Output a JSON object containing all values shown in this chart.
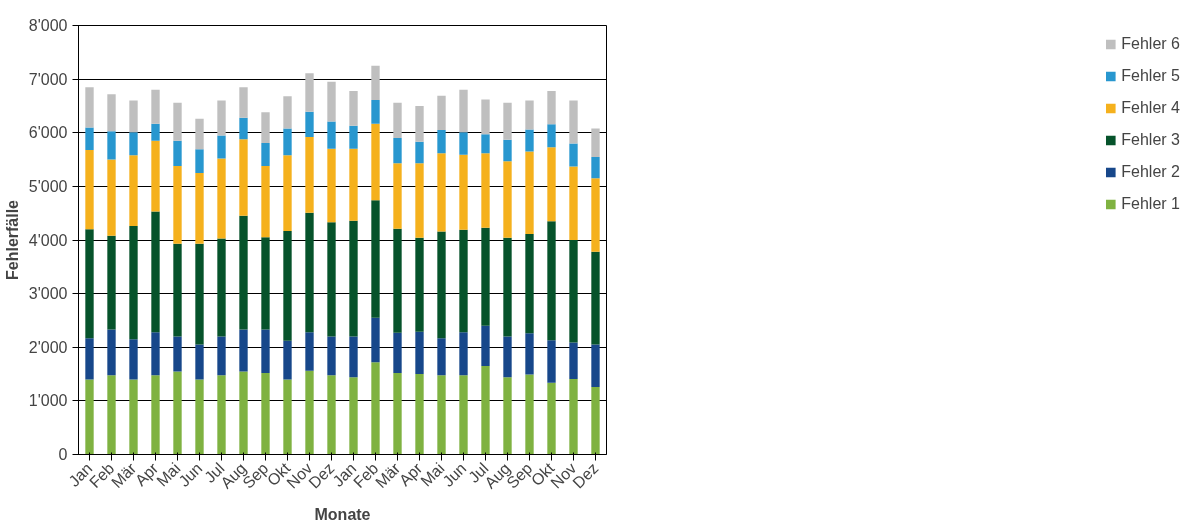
{
  "chart_data": {
    "type": "bar",
    "stacked": true,
    "xlabel": "Monate",
    "ylabel": "Fehlerfälle",
    "categories": [
      "Jan",
      "Feb",
      "Mär",
      "Apr",
      "Mai",
      "Jun",
      "Jul",
      "Aug",
      "Sep",
      "Okt",
      "Nov",
      "Dez",
      "Jan",
      "Feb",
      "Mär",
      "Apr",
      "Mai",
      "Jun",
      "Jul",
      "Aug",
      "Sep",
      "Okt",
      "Nov",
      "Dez"
    ],
    "series": [
      {
        "name": "Fehler 1",
        "color": "#7fb241",
        "values": [
          1400,
          1480,
          1400,
          1480,
          1550,
          1400,
          1480,
          1550,
          1520,
          1400,
          1560,
          1480,
          1440,
          1720,
          1520,
          1500,
          1480,
          1480,
          1650,
          1440,
          1490,
          1340,
          1410,
          1260
        ]
      },
      {
        "name": "Fehler 2",
        "color": "#17478a",
        "values": [
          770,
          850,
          750,
          800,
          650,
          650,
          720,
          780,
          810,
          720,
          720,
          720,
          760,
          830,
          750,
          790,
          690,
          800,
          750,
          760,
          770,
          790,
          680,
          790
        ]
      },
      {
        "name": "Fehler 3",
        "color": "#06532b",
        "values": [
          2030,
          1750,
          2110,
          2250,
          1730,
          1880,
          1830,
          2120,
          1720,
          2050,
          2230,
          2130,
          2160,
          2190,
          1940,
          1750,
          1990,
          1910,
          1830,
          1840,
          1850,
          2220,
          1910,
          1730
        ]
      },
      {
        "name": "Fehler 4",
        "color": "#f5b11d",
        "values": [
          1480,
          1420,
          1320,
          1320,
          1450,
          1320,
          1490,
          1430,
          1330,
          1410,
          1410,
          1370,
          1340,
          1430,
          1220,
          1390,
          1460,
          1400,
          1390,
          1430,
          1540,
          1380,
          1370,
          1370
        ]
      },
      {
        "name": "Fehler 5",
        "color": "#2897cf",
        "values": [
          420,
          530,
          430,
          320,
          470,
          440,
          430,
          400,
          430,
          500,
          470,
          510,
          430,
          440,
          470,
          400,
          430,
          420,
          350,
          400,
          410,
          430,
          430,
          400
        ]
      },
      {
        "name": "Fehler 6",
        "color": "#bfbfbf",
        "values": [
          750,
          690,
          590,
          630,
          710,
          570,
          650,
          570,
          570,
          600,
          720,
          740,
          650,
          640,
          660,
          670,
          640,
          790,
          650,
          690,
          540,
          620,
          800,
          530
        ]
      }
    ],
    "ylim": [
      0,
      8000
    ],
    "yticks": [
      {
        "value": 0,
        "label": "0"
      },
      {
        "value": 1000,
        "label": "1'000"
      },
      {
        "value": 2000,
        "label": "2'000"
      },
      {
        "value": 3000,
        "label": "3'000"
      },
      {
        "value": 4000,
        "label": "4'000"
      },
      {
        "value": 5000,
        "label": "5'000"
      },
      {
        "value": 6000,
        "label": "6'000"
      },
      {
        "value": 7000,
        "label": "7'000"
      },
      {
        "value": 8000,
        "label": "8'000"
      }
    ],
    "grid": "y",
    "legend": "right"
  }
}
